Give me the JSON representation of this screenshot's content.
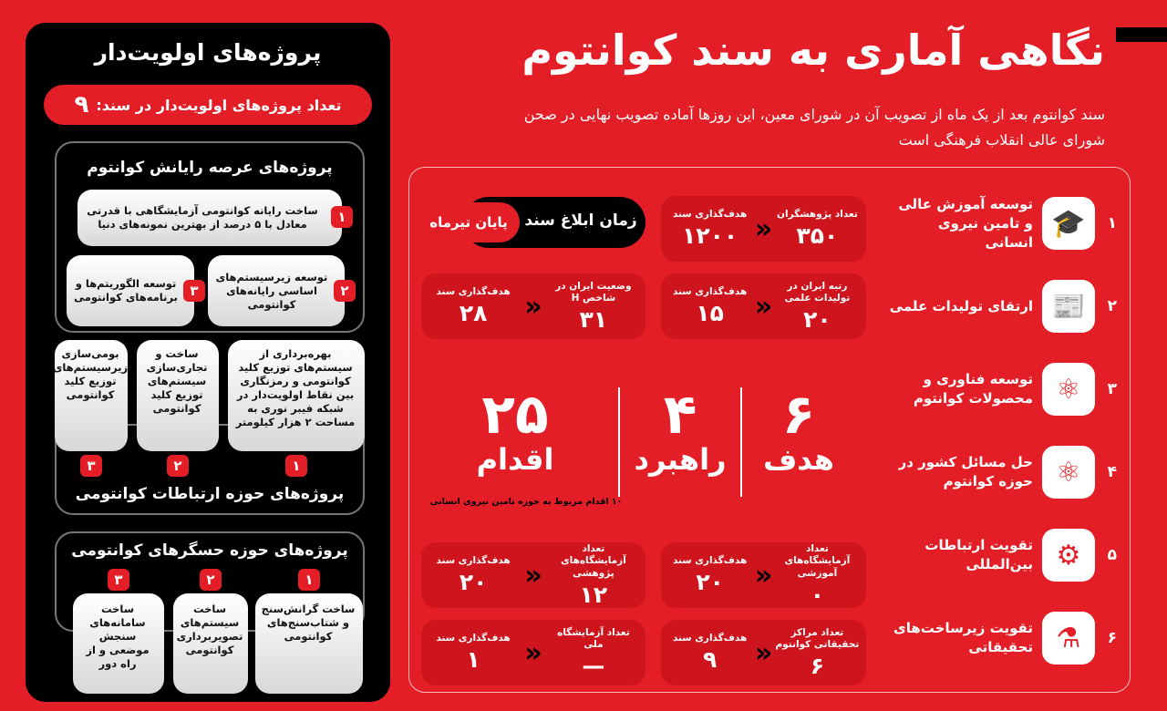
{
  "header": {
    "title": "نگاهی آماری به سند کوانتوم",
    "subtitle": "سند کوانتوم بعد از یک ماه از تصویب آن در شورای معین، این روزها آماده تصویب نهایی در صحن شورای عالی انقلاب فرهنگی است"
  },
  "priority": {
    "title": "پروژه‌های اولویت‌دار",
    "count_label": "تعداد پروژه‌های اولویت‌دار در سند:",
    "count": "۹",
    "computing": {
      "title": "پروژه‌های عرصه رایانش کوانتوم",
      "items": [
        {
          "n": "۱",
          "text": "ساخت رایانه کوانتومی آزمایشگاهی با قدرتی معادل با ۵ درصد از بهترین نمونه‌های دنیا"
        },
        {
          "n": "۲",
          "text": "توسعه زیرسیستم‌های اساسی رایانه‌های کوانتومی"
        },
        {
          "n": "۳",
          "text": "توسعه الگوریتم‌ها و برنامه‌های کوانتومی"
        }
      ]
    },
    "communication": {
      "title": "پروژه‌های حوزه ارتباطات کوانتومی",
      "items": [
        {
          "n": "۱",
          "text": "بهره‌برداری از سیستم‌های توزیع کلید کوانتومی و رمزنگاری بین نقاط اولویت‌دار در شبکه فیبر نوری به مساحت ۲ هزار کیلومتر"
        },
        {
          "n": "۲",
          "text": "ساخت و تجاری‌سازی سیستم‌های توزیع کلید کوانتومی"
        },
        {
          "n": "۳",
          "text": "بومی‌سازی زیرسیستم‌های توزیع کلید کوانتومی"
        }
      ]
    },
    "sensors": {
      "title": "پروژه‌های حوزه حسگرهای کوانتومی",
      "items": [
        {
          "n": "۱",
          "text": "ساخت گرانش‌سنج و شتاب‌سنج‌های کوانتومی"
        },
        {
          "n": "۲",
          "text": "ساخت سیستم‌های تصویربرداری کوانتومی"
        },
        {
          "n": "۳",
          "text": "ساخت سامانه‌های سنجش موضعی و از راه دور"
        }
      ]
    }
  },
  "release": {
    "label": "زمان ابلاغ سند",
    "value": "پایان تیرماه"
  },
  "stats": [
    {
      "label": "تعداد پژوهشگران",
      "value": "۳۵۰",
      "target_label": "هدف‌گذاری سند",
      "target": "۱۲۰۰"
    },
    {
      "label": "رتبه ایران در تولیدات علمی",
      "value": "۲۰",
      "target_label": "هدف‌گذاری سند",
      "target": "۱۵"
    },
    {
      "label": "وضعیت ایران در شاخص H",
      "value": "۳۱",
      "target_label": "هدف‌گذاری سند",
      "target": "۲۸"
    },
    {
      "label": "تعداد آزمایشگاه‌های آموزشی",
      "value": "۰",
      "target_label": "هدف‌گذاری سند",
      "target": "۲۰"
    },
    {
      "label": "تعداد آزمایشگاه‌های پژوهشی",
      "value": "۱۲",
      "target_label": "هدف‌گذاری سند",
      "target": "۲۰"
    },
    {
      "label": "تعداد مراکز تحقیقاتی کوانتوم",
      "value": "۶",
      "target_label": "هدف‌گذاری سند",
      "target": "۹"
    },
    {
      "label": "تعداد آزمایشگاه ملی",
      "value": "—",
      "target_label": "هدف‌گذاری سند",
      "target": "۱"
    }
  ],
  "summary": {
    "goals": {
      "n": "۶",
      "w": "هدف"
    },
    "strategies": {
      "n": "۴",
      "w": "راهبرد"
    },
    "actions": {
      "n": "۲۵",
      "w": "اقدام"
    },
    "note": "۱۰ اقدام مربوط به حوزه تامین نیروی انسانی"
  },
  "goals": [
    {
      "n": "۱",
      "text": "توسعه آموزش عالی و تامین نیروی انسانی",
      "icon": "graduate-icon",
      "glyph": "🎓"
    },
    {
      "n": "۲",
      "text": "ارتقای تولیدات علمی",
      "icon": "newspaper-icon",
      "glyph": "📰"
    },
    {
      "n": "۳",
      "text": "توسعه فناوری و محصولات کوانتوم",
      "icon": "atom-monitor-icon",
      "glyph": "⚛"
    },
    {
      "n": "۴",
      "text": "حل مسائل کشور در حوزه کوانتوم",
      "icon": "atom-icon",
      "glyph": "⚛"
    },
    {
      "n": "۵",
      "text": "تقویت ارتباطات بین‌المللی",
      "icon": "team-gear-icon",
      "glyph": "⚙"
    },
    {
      "n": "۶",
      "text": "تقویت زیرساخت‌های تحقیقاتی",
      "icon": "lab-flask-icon",
      "glyph": "⚗"
    }
  ],
  "colors": {
    "red": "#e41e26",
    "black": "#000000"
  }
}
